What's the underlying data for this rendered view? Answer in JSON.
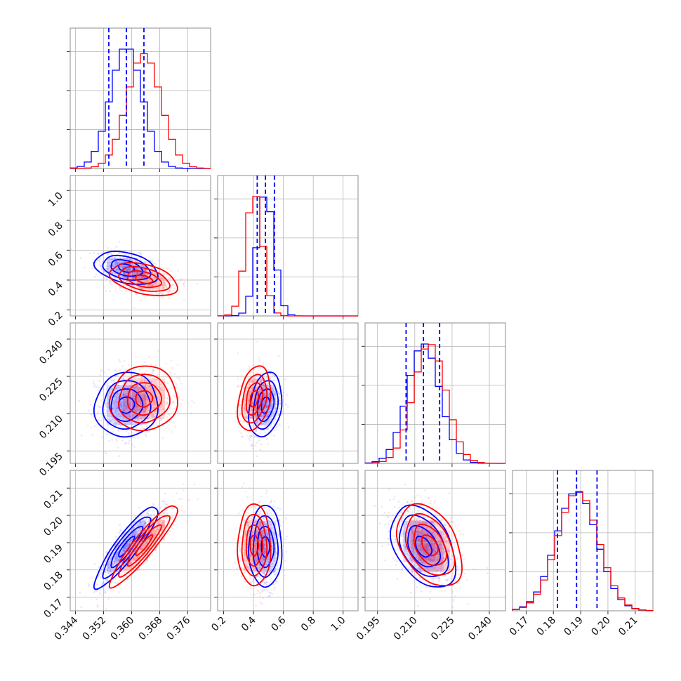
{
  "figure": {
    "colors": {
      "series_a": "#0000ff",
      "series_b": "#ff0000",
      "quantiles": "#0000ff",
      "grid": "#b8b8b8",
      "frame": "#8c8c8c"
    }
  },
  "chart_data": {
    "type": "corner",
    "parameters": [
      {
        "range": [
          0.3425,
          0.3825
        ],
        "ticks": [
          0.344,
          0.352,
          0.36,
          0.368,
          0.376
        ],
        "tick_labels": [
          "0.344",
          "0.352",
          "0.360",
          "0.368",
          "0.376"
        ]
      },
      {
        "range": [
          0.16,
          1.1
        ],
        "ticks": [
          0.2,
          0.4,
          0.6,
          0.8,
          1.0
        ],
        "tick_labels": [
          "0.2",
          "0.4",
          "0.6",
          "0.8",
          "1.0"
        ]
      },
      {
        "range": [
          0.19,
          0.2465
        ],
        "ticks": [
          0.195,
          0.21,
          0.225,
          0.24
        ],
        "tick_labels": [
          "0.195",
          "0.210",
          "0.225",
          "0.240"
        ]
      },
      {
        "range": [
          0.165,
          0.2165
        ],
        "ticks": [
          0.17,
          0.18,
          0.19,
          0.2,
          0.21
        ],
        "tick_labels": [
          "0.17",
          "0.18",
          "0.19",
          "0.20",
          "0.21"
        ]
      }
    ],
    "series": [
      {
        "color": "#0000ff",
        "means": [
          0.3585,
          0.48,
          0.2135,
          0.1885
        ],
        "sds": [
          0.0045,
          0.055,
          0.0065,
          0.0075
        ],
        "corr": {
          "0-1": -0.35,
          "0-2": 0.05,
          "0-3": 0.9,
          "1-2": 0.25,
          "1-3": 0.0,
          "2-3": -0.4
        }
      },
      {
        "color": "#ff0000",
        "means": [
          0.3635,
          0.405,
          0.216,
          0.189
        ],
        "sds": [
          0.0048,
          0.055,
          0.0065,
          0.0075
        ],
        "corr": {
          "0-1": -0.4,
          "0-2": 0.05,
          "0-3": 0.92,
          "1-2": 0.3,
          "1-3": 0.0,
          "2-3": -0.4
        }
      }
    ],
    "quantiles": [
      [
        0.3535,
        0.3585,
        0.3635
      ],
      [
        0.425,
        0.48,
        0.54
      ],
      [
        0.2065,
        0.2135,
        0.22
      ],
      [
        0.1815,
        0.1885,
        0.196
      ]
    ],
    "histogram_bins": 20,
    "contour_levels_sigma": [
      0.5,
      1.0,
      1.5,
      2.0
    ],
    "grid": true,
    "legend": "none"
  }
}
